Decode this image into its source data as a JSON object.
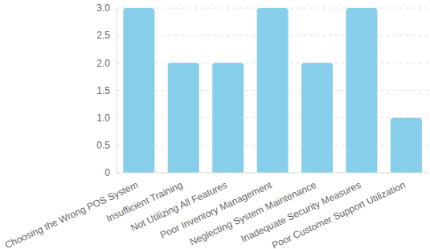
{
  "chart_data": {
    "type": "bar",
    "categories": [
      "Choosing the Wrong POS System",
      "Insufficient Training",
      "Not Utilizing All Features",
      "Poor Inventory Management",
      "Neglecting System Maintenance",
      "Inadequate Security Measures",
      "Poor Customer Support Utilization"
    ],
    "values": [
      3,
      2,
      2,
      3,
      2,
      3,
      1
    ],
    "color": "#87ceeb",
    "ylim": [
      0,
      3
    ],
    "yticks": [
      0,
      0.5,
      {
        "value": 1,
        "label": "1.0"
      },
      1.5,
      {
        "value": 2,
        "label": "2.0"
      },
      2.5,
      {
        "value": 3,
        "label": "3.0"
      }
    ],
    "grid": true
  }
}
